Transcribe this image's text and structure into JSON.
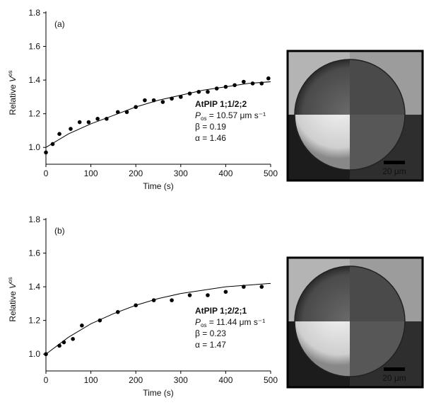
{
  "chart_data": [
    {
      "type": "scatter",
      "panel_label": "(a)",
      "xlabel": "Time (s)",
      "ylabel": {
        "text": "Relative ",
        "symbol": "V",
        "superscript": "os"
      },
      "xlim": [
        0,
        500
      ],
      "xticks": [
        0,
        100,
        200,
        300,
        400,
        500
      ],
      "ylim": [
        0.9,
        1.8
      ],
      "yticks": [
        {
          "value": 1,
          "label": "1.0"
        },
        1.2,
        1.4,
        1.6,
        1.8
      ],
      "series": [
        {
          "type": "scatter",
          "color": "#000000",
          "x": [
            0,
            15,
            30,
            55,
            75,
            95,
            115,
            135,
            160,
            180,
            200,
            220,
            240,
            260,
            280,
            300,
            320,
            340,
            360,
            380,
            400,
            420,
            440,
            460,
            480,
            495
          ],
          "values": [
            0.97,
            1.02,
            1.08,
            1.11,
            1.15,
            1.15,
            1.17,
            1.17,
            1.21,
            1.21,
            1.24,
            1.28,
            1.28,
            1.27,
            1.29,
            1.3,
            1.32,
            1.33,
            1.33,
            1.35,
            1.36,
            1.37,
            1.39,
            1.38,
            1.38,
            1.41
          ]
        },
        {
          "type": "line",
          "color": "#000000",
          "x": [
            0,
            50,
            100,
            150,
            200,
            250,
            300,
            350,
            400,
            450,
            500
          ],
          "values": [
            1.0,
            1.08,
            1.14,
            1.19,
            1.24,
            1.28,
            1.31,
            1.34,
            1.36,
            1.38,
            1.39
          ]
        }
      ],
      "annotation": {
        "title": "AtPIP 1;1/2;2",
        "symbol": "P",
        "subscript": "os",
        "text": " = 10.57 μm s⁻¹",
        "lines": [
          "β = 0.19",
          "α = 1.46"
        ]
      },
      "scale_bar": "20 μm"
    },
    {
      "type": "scatter",
      "panel_label": "(b)",
      "xlabel": "Time (s)",
      "ylabel": {
        "text": "Relative ",
        "symbol": "V",
        "superscript": "os"
      },
      "xlim": [
        0,
        500
      ],
      "xticks": [
        0,
        100,
        200,
        300,
        400,
        500
      ],
      "ylim": [
        0.9,
        1.8
      ],
      "yticks": [
        {
          "value": 1,
          "label": "1.0"
        },
        1.2,
        1.4,
        1.6,
        1.8
      ],
      "series": [
        {
          "type": "scatter",
          "color": "#000000",
          "x": [
            0,
            30,
            40,
            60,
            80,
            120,
            160,
            200,
            240,
            280,
            320,
            360,
            400,
            440,
            480
          ],
          "values": [
            1.0,
            1.05,
            1.07,
            1.09,
            1.17,
            1.2,
            1.25,
            1.29,
            1.32,
            1.32,
            1.35,
            1.35,
            1.37,
            1.4,
            1.4
          ]
        },
        {
          "type": "line",
          "color": "#000000",
          "x": [
            0,
            50,
            100,
            150,
            200,
            250,
            300,
            350,
            400,
            450,
            500
          ],
          "values": [
            1.0,
            1.1,
            1.18,
            1.24,
            1.29,
            1.33,
            1.36,
            1.38,
            1.4,
            1.41,
            1.42
          ]
        }
      ],
      "annotation": {
        "title": "AtPIP 1;2/2;1",
        "symbol": "P",
        "subscript": "os",
        "text": " = 11.44 μm s⁻¹",
        "lines": [
          "β = 0.23",
          "α = 1.47"
        ]
      },
      "scale_bar": "20 μm"
    }
  ]
}
